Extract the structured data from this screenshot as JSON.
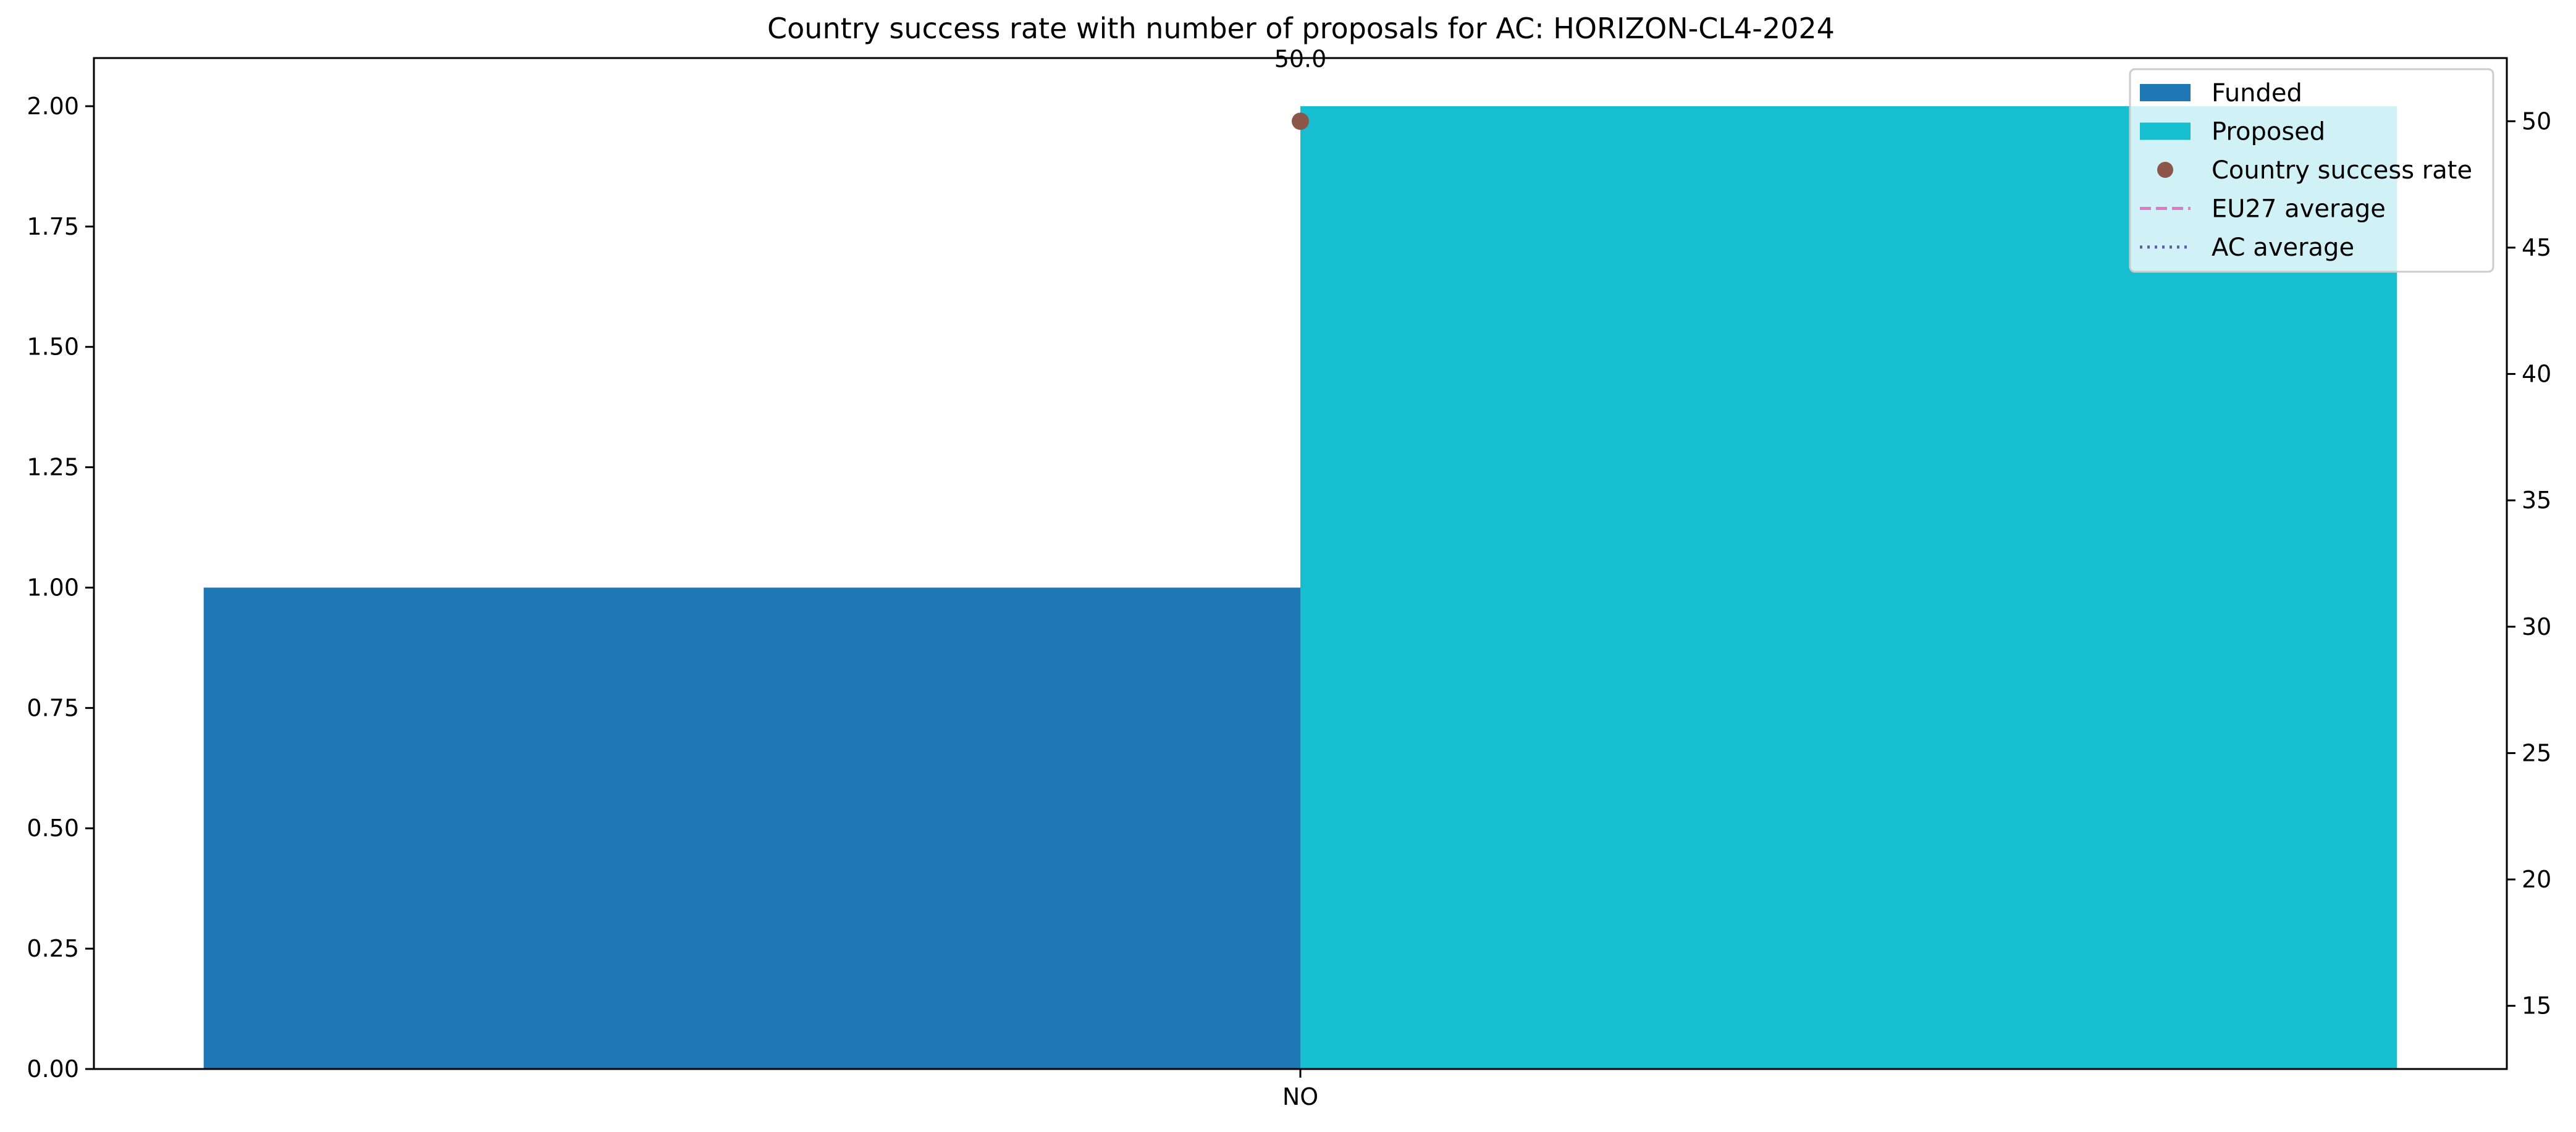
{
  "chart_data": {
    "type": "bar",
    "title": "Country success rate with number of proposals for AC: HORIZON-CL4-2024",
    "xlabel": "",
    "ylabel": "",
    "y2label": "",
    "categories": [
      "NO"
    ],
    "series": [
      {
        "name": "Funded",
        "values": [
          1
        ],
        "color": "#1f77b4",
        "axis": "left"
      },
      {
        "name": "Proposed",
        "values": [
          2
        ],
        "color": "#17becf",
        "axis": "left"
      },
      {
        "name": "Country success rate",
        "values": [
          50.0
        ],
        "color": "#8c564b",
        "axis": "right",
        "kind": "scatter"
      }
    ],
    "reference_lines": [
      {
        "name": "EU27 average",
        "color": "#e377c2",
        "style": "dashed"
      },
      {
        "name": "AC average",
        "color": "#5a5fa8",
        "style": "dotted"
      }
    ],
    "data_labels": [
      "50.0"
    ],
    "ylim": [
      0,
      2.1
    ],
    "y2lim": [
      12.5,
      52.5
    ],
    "yticks": [
      "0.00",
      "0.25",
      "0.50",
      "0.75",
      "1.00",
      "1.25",
      "1.50",
      "1.75",
      "2.00"
    ],
    "y2ticks": [
      "15",
      "20",
      "25",
      "30",
      "35",
      "40",
      "45",
      "50"
    ],
    "legend_position": "top-right",
    "grid": false
  }
}
